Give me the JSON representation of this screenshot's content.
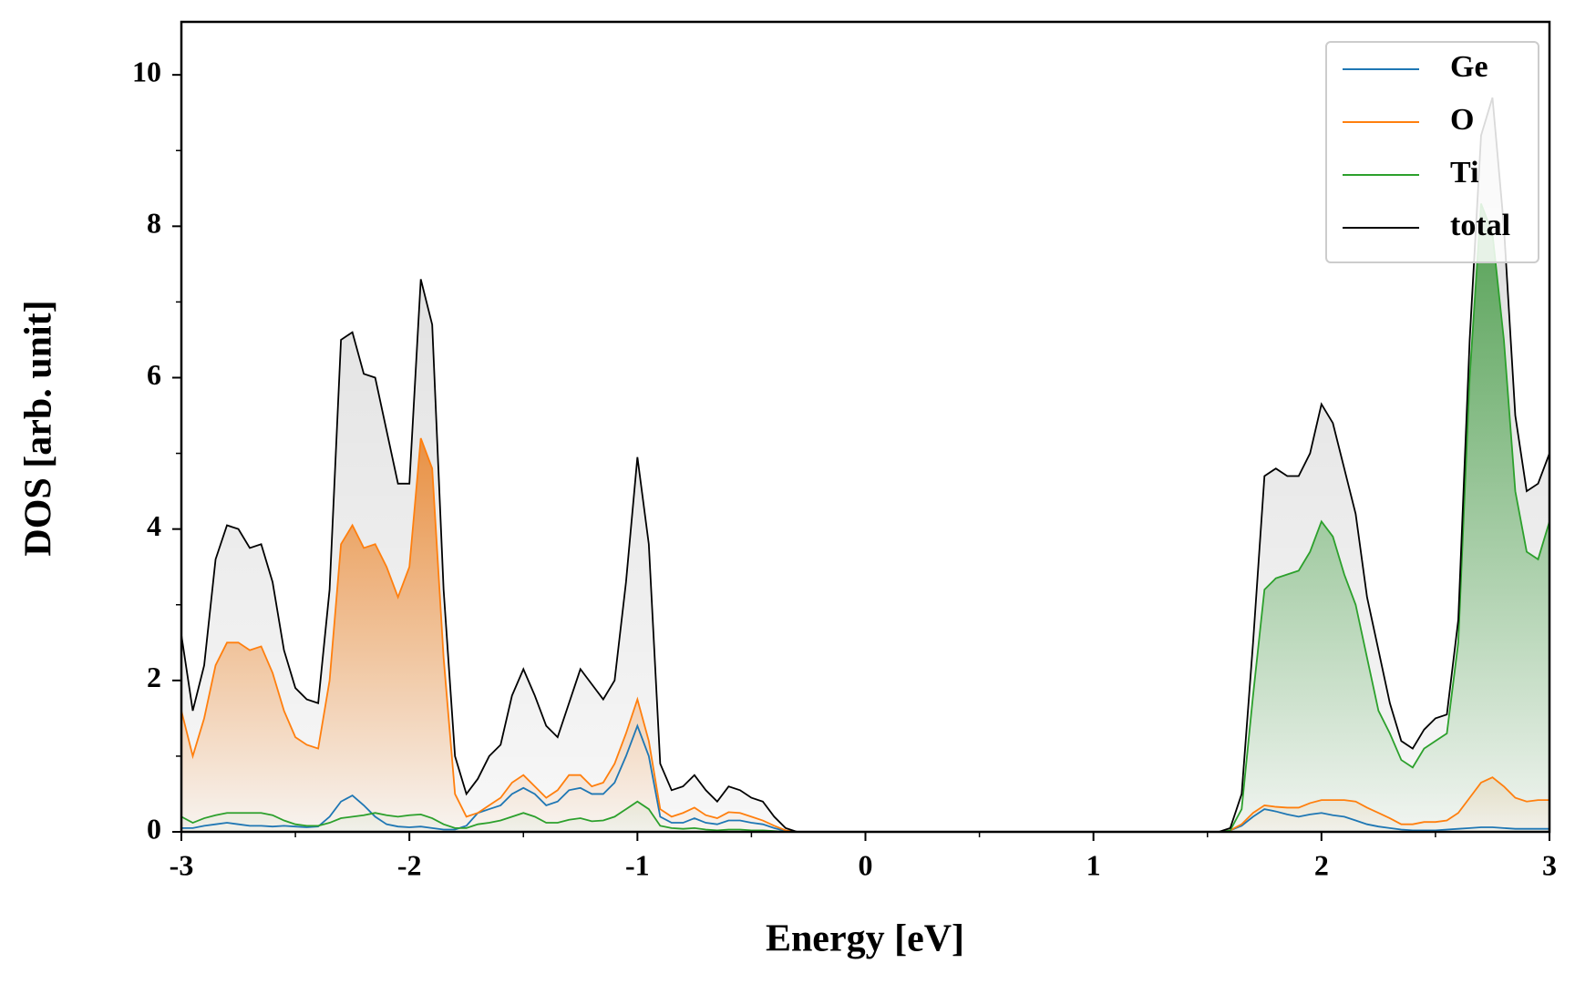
{
  "chart_data": {
    "type": "line",
    "xlabel": "Energy [eV]",
    "ylabel": "DOS [arb. unit]",
    "x": [
      -3.0,
      -2.95,
      -2.9,
      -2.85,
      -2.8,
      -2.75,
      -2.7,
      -2.65,
      -2.6,
      -2.55,
      -2.5,
      -2.45,
      -2.4,
      -2.35,
      -2.3,
      -2.25,
      -2.2,
      -2.15,
      -2.1,
      -2.05,
      -2.0,
      -1.95,
      -1.9,
      -1.85,
      -1.8,
      -1.75,
      -1.7,
      -1.65,
      -1.6,
      -1.55,
      -1.5,
      -1.45,
      -1.4,
      -1.35,
      -1.3,
      -1.25,
      -1.2,
      -1.15,
      -1.1,
      -1.05,
      -1.0,
      -0.95,
      -0.9,
      -0.85,
      -0.8,
      -0.75,
      -0.7,
      -0.65,
      -0.6,
      -0.55,
      -0.5,
      -0.45,
      -0.4,
      -0.35,
      -0.3,
      -0.2,
      0,
      0.5,
      1.0,
      1.5,
      1.55,
      1.6,
      1.65,
      1.7,
      1.75,
      1.8,
      1.85,
      1.9,
      1.95,
      2.0,
      2.05,
      2.1,
      2.15,
      2.2,
      2.25,
      2.3,
      2.35,
      2.4,
      2.45,
      2.5,
      2.55,
      2.6,
      2.65,
      2.7,
      2.75,
      2.8,
      2.85,
      2.9,
      2.95,
      3.0
    ],
    "series": [
      {
        "name": "Ge",
        "color": "#1f77b4",
        "fill": false,
        "values": [
          0.05,
          0.05,
          0.08,
          0.1,
          0.12,
          0.1,
          0.08,
          0.08,
          0.07,
          0.08,
          0.07,
          0.06,
          0.07,
          0.2,
          0.4,
          0.48,
          0.35,
          0.2,
          0.1,
          0.07,
          0.06,
          0.07,
          0.05,
          0.03,
          0.03,
          0.08,
          0.25,
          0.3,
          0.35,
          0.5,
          0.58,
          0.5,
          0.35,
          0.4,
          0.55,
          0.58,
          0.5,
          0.5,
          0.65,
          1.0,
          1.4,
          1.0,
          0.2,
          0.12,
          0.12,
          0.18,
          0.12,
          0.1,
          0.15,
          0.15,
          0.12,
          0.1,
          0.05,
          0.01,
          0,
          0,
          0,
          0,
          0,
          0,
          0,
          0.02,
          0.08,
          0.2,
          0.3,
          0.27,
          0.23,
          0.2,
          0.23,
          0.25,
          0.22,
          0.2,
          0.15,
          0.1,
          0.07,
          0.05,
          0.03,
          0.02,
          0.02,
          0.02,
          0.03,
          0.04,
          0.05,
          0.06,
          0.06,
          0.05,
          0.04,
          0.04,
          0.04,
          0.04
        ]
      },
      {
        "name": "O",
        "color": "#ff7f0e",
        "fill": true,
        "values": [
          1.6,
          1.0,
          1.5,
          2.2,
          2.5,
          2.5,
          2.4,
          2.45,
          2.1,
          1.6,
          1.25,
          1.15,
          1.1,
          2.0,
          3.8,
          4.05,
          3.75,
          3.8,
          3.5,
          3.1,
          3.5,
          5.2,
          4.8,
          2.3,
          0.5,
          0.2,
          0.25,
          0.35,
          0.45,
          0.65,
          0.75,
          0.6,
          0.45,
          0.55,
          0.75,
          0.75,
          0.6,
          0.65,
          0.9,
          1.3,
          1.75,
          1.2,
          0.3,
          0.2,
          0.25,
          0.32,
          0.22,
          0.18,
          0.26,
          0.25,
          0.2,
          0.15,
          0.08,
          0.02,
          0,
          0,
          0,
          0,
          0,
          0,
          0,
          0.02,
          0.1,
          0.25,
          0.35,
          0.33,
          0.32,
          0.32,
          0.38,
          0.42,
          0.42,
          0.42,
          0.4,
          0.32,
          0.25,
          0.18,
          0.1,
          0.1,
          0.13,
          0.13,
          0.15,
          0.25,
          0.45,
          0.65,
          0.72,
          0.6,
          0.45,
          0.4,
          0.42,
          0.42
        ]
      },
      {
        "name": "Ti",
        "color": "#2ca02c",
        "fill": true,
        "values": [
          0.2,
          0.12,
          0.18,
          0.22,
          0.25,
          0.25,
          0.25,
          0.25,
          0.22,
          0.15,
          0.1,
          0.08,
          0.08,
          0.12,
          0.18,
          0.2,
          0.22,
          0.25,
          0.22,
          0.2,
          0.22,
          0.23,
          0.18,
          0.1,
          0.05,
          0.05,
          0.1,
          0.12,
          0.15,
          0.2,
          0.25,
          0.2,
          0.12,
          0.12,
          0.16,
          0.18,
          0.14,
          0.15,
          0.2,
          0.3,
          0.4,
          0.3,
          0.08,
          0.05,
          0.04,
          0.05,
          0.03,
          0.02,
          0.03,
          0.03,
          0.02,
          0.02,
          0.01,
          0,
          0,
          0,
          0,
          0,
          0,
          0,
          0,
          0.02,
          0.3,
          1.8,
          3.2,
          3.35,
          3.4,
          3.45,
          3.7,
          4.1,
          3.9,
          3.4,
          3.0,
          2.3,
          1.6,
          1.3,
          0.95,
          0.85,
          1.1,
          1.2,
          1.3,
          2.5,
          6.0,
          8.3,
          7.9,
          6.5,
          4.5,
          3.7,
          3.6,
          4.1
        ]
      },
      {
        "name": "total",
        "color": "#000000",
        "fill": true,
        "values": [
          2.6,
          1.6,
          2.2,
          3.6,
          4.05,
          4.0,
          3.75,
          3.8,
          3.3,
          2.4,
          1.9,
          1.75,
          1.7,
          3.2,
          6.5,
          6.6,
          6.05,
          6.0,
          5.3,
          4.6,
          4.6,
          7.3,
          6.7,
          3.2,
          1.0,
          0.5,
          0.7,
          1.0,
          1.15,
          1.8,
          2.15,
          1.8,
          1.4,
          1.25,
          1.7,
          2.15,
          1.95,
          1.75,
          2.0,
          3.3,
          4.95,
          3.8,
          0.9,
          0.55,
          0.6,
          0.75,
          0.55,
          0.4,
          0.6,
          0.55,
          0.45,
          0.4,
          0.2,
          0.05,
          0,
          0,
          0,
          0,
          0,
          0,
          0,
          0.05,
          0.5,
          2.5,
          4.7,
          4.8,
          4.7,
          4.7,
          5.0,
          5.65,
          5.4,
          4.8,
          4.2,
          3.1,
          2.4,
          1.7,
          1.2,
          1.1,
          1.35,
          1.5,
          1.55,
          2.8,
          6.5,
          9.2,
          9.7,
          8.0,
          5.5,
          4.5,
          4.6,
          5.0
        ]
      }
    ],
    "xlim": [
      -3,
      3
    ],
    "xticks": [
      -3,
      -2,
      -1,
      0,
      1,
      2,
      3
    ],
    "xminorticks": [
      -2.5,
      -1.5,
      -0.5,
      0.5,
      1.5,
      2.5
    ],
    "ylim": [
      0,
      10.7
    ],
    "yticks": [
      0,
      2,
      4,
      6,
      8,
      10
    ],
    "yminorticks": [
      1,
      3,
      5,
      7,
      9
    ],
    "legend": "upper right"
  }
}
